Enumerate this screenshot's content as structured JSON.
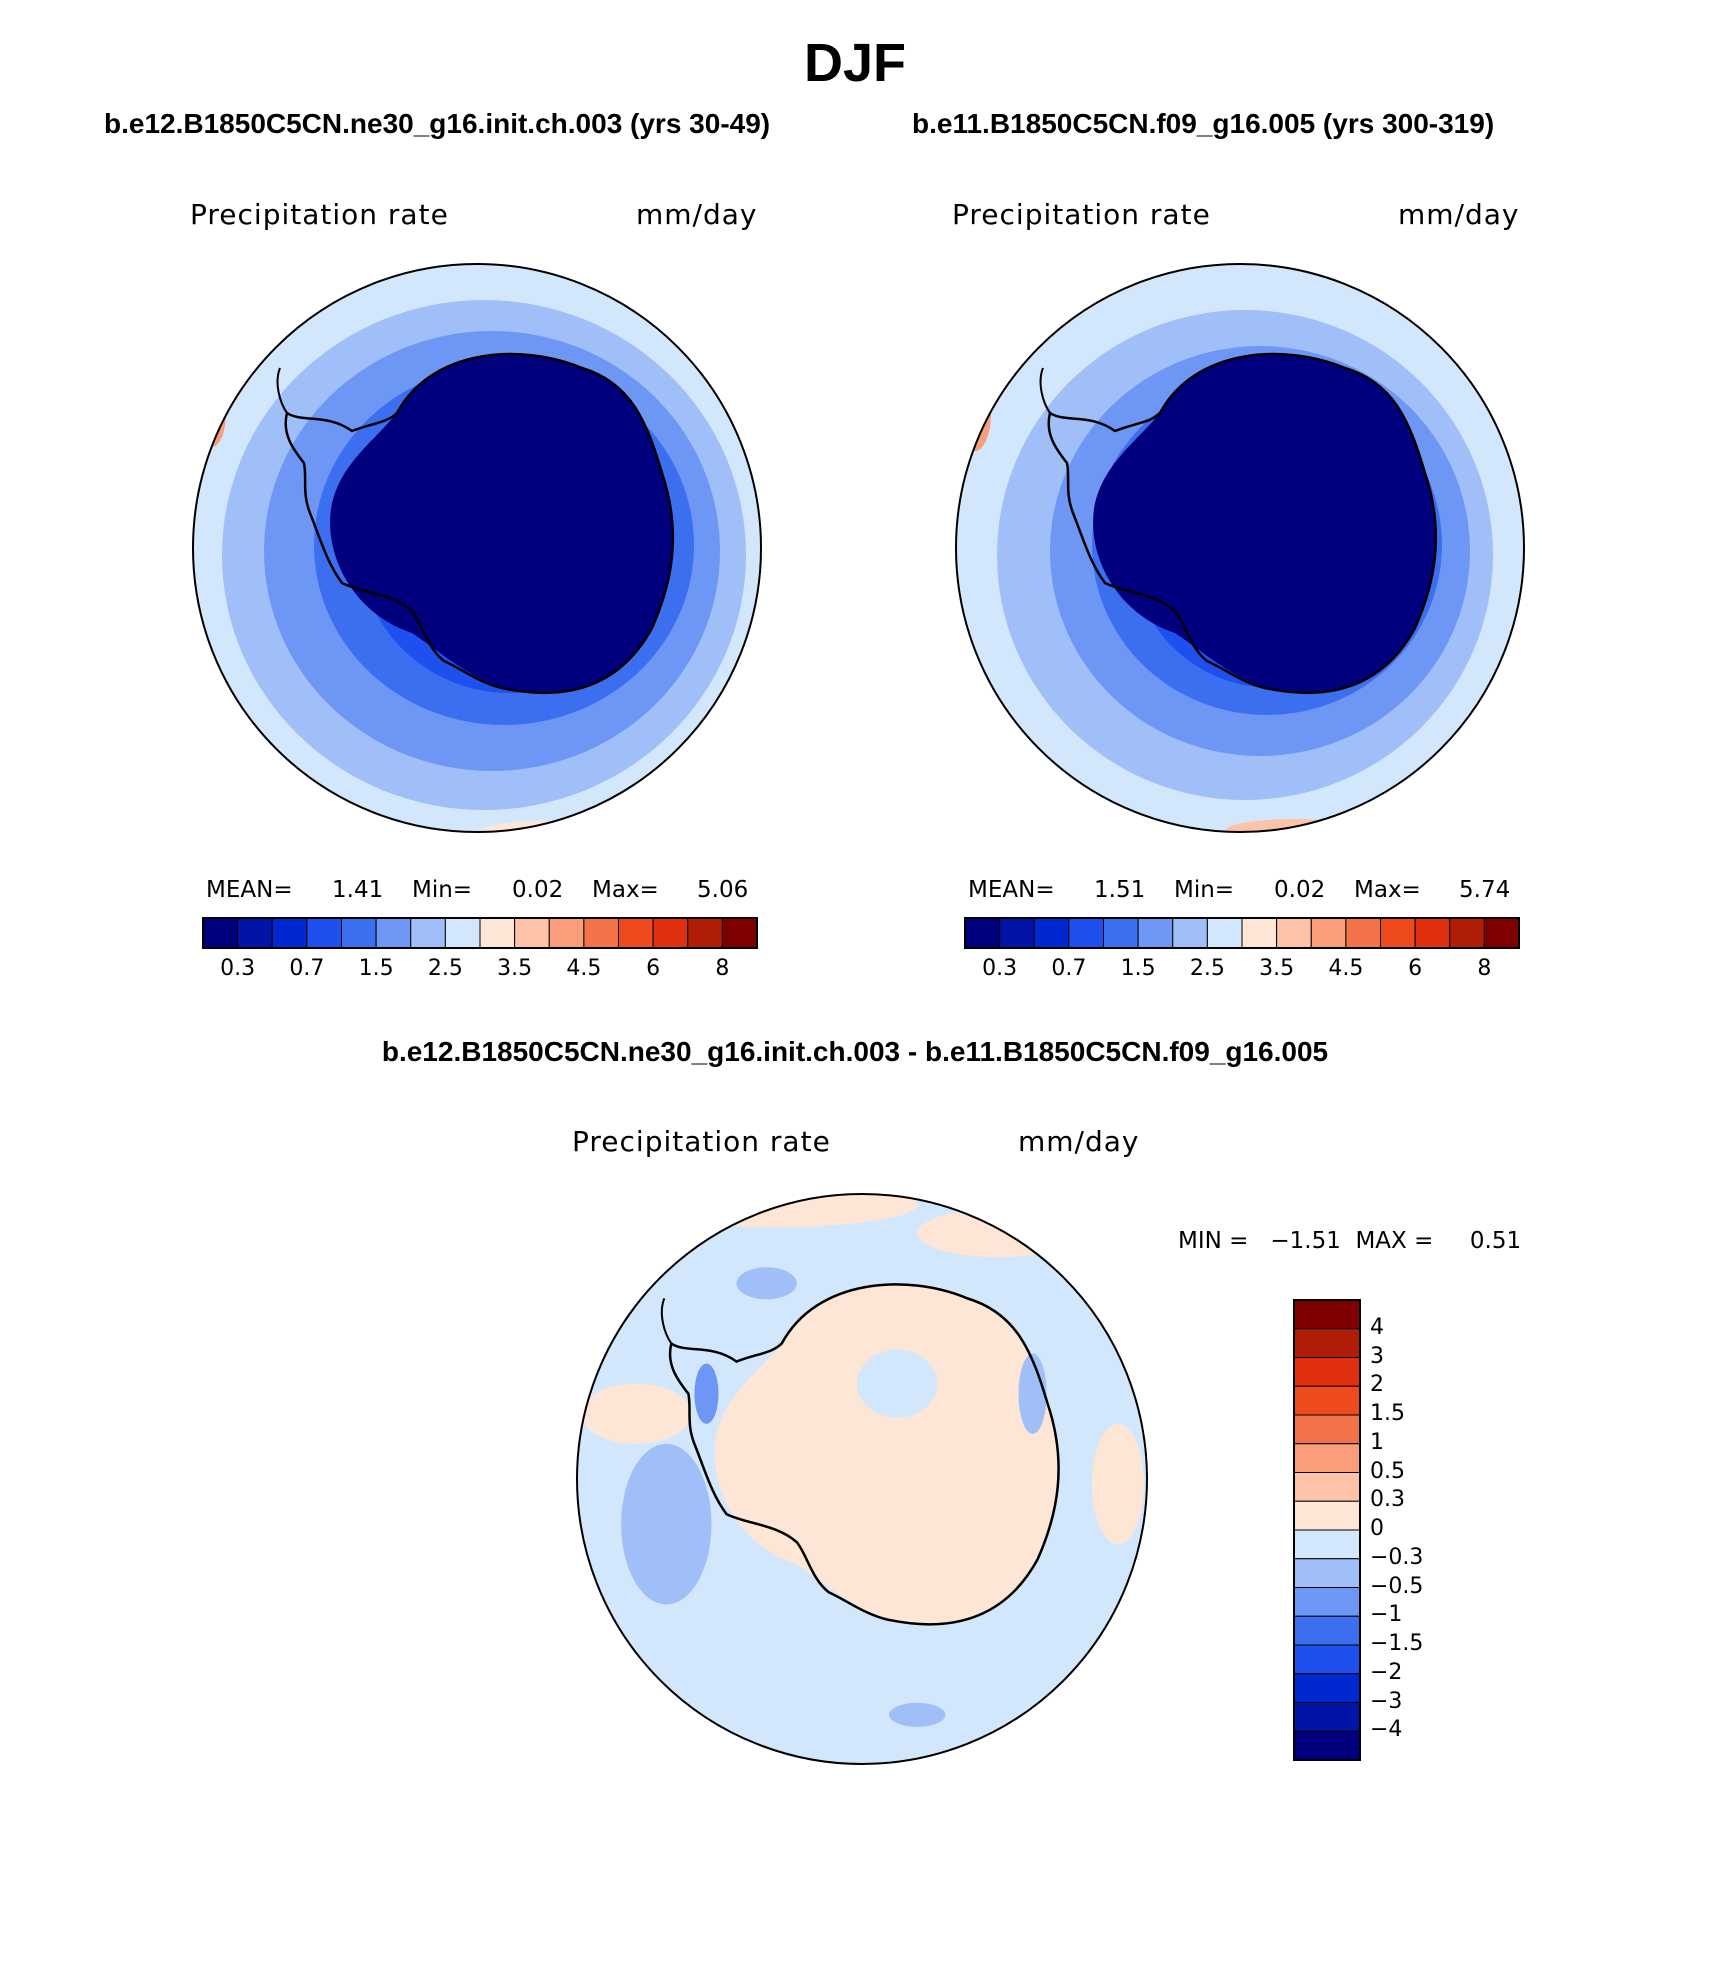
{
  "title": "DJF",
  "panels": [
    {
      "case_title": "b.e12.B1850C5CN.ne30_g16.init.ch.003 (yrs 30-49)",
      "variable": "Precipitation rate",
      "units": "mm/day",
      "stats": {
        "mean_label": "MEAN=",
        "mean": "1.41",
        "min_label": "Min=",
        "min": "0.02",
        "max_label": "Max=",
        "max": "5.06"
      }
    },
    {
      "case_title": "b.e11.B1850C5CN.f09_g16.005 (yrs 300-319)",
      "variable": "Precipitation rate",
      "units": "mm/day",
      "stats": {
        "mean_label": "MEAN=",
        "mean": "1.51",
        "min_label": "Min=",
        "min": "0.02",
        "max_label": "Max=",
        "max": "5.74"
      }
    }
  ],
  "colorbar_fields": {
    "colors": [
      "#00007f",
      "#0014a8",
      "#0028d0",
      "#1e50f0",
      "#3c6ef0",
      "#6e96f4",
      "#a0bef8",
      "#d2e6fc",
      "#fde6d6",
      "#fcc3a8",
      "#f99d7a",
      "#f47248",
      "#ef4a1e",
      "#e03010",
      "#b01e08",
      "#7f0000"
    ],
    "labels": [
      "0.3",
      "0.7",
      "1.5",
      "2.5",
      "3.5",
      "4.5",
      "6",
      "8"
    ]
  },
  "difference": {
    "title": "b.e12.B1850C5CN.ne30_g16.init.ch.003 - b.e11.B1850C5CN.f09_g16.005",
    "variable": "Precipitation rate",
    "units": "mm/day",
    "minmax": "MIN =   −1.51  MAX =     0.51",
    "colorbar_colors": [
      "#7f0000",
      "#b01e08",
      "#e03010",
      "#ef4a1e",
      "#f47248",
      "#f99d7a",
      "#fcc3a8",
      "#fde6d6",
      "#d2e6fc",
      "#a0bef8",
      "#6e96f4",
      "#3c6ef0",
      "#1e50f0",
      "#0028d0",
      "#0014a8",
      "#00007f"
    ],
    "colorbar_labels": [
      "4",
      "3",
      "2",
      "1.5",
      "1",
      "0.5",
      "0.3",
      "0",
      "−0.3",
      "−0.5",
      "−1",
      "−1.5",
      "−2",
      "−3",
      "−4"
    ]
  }
}
